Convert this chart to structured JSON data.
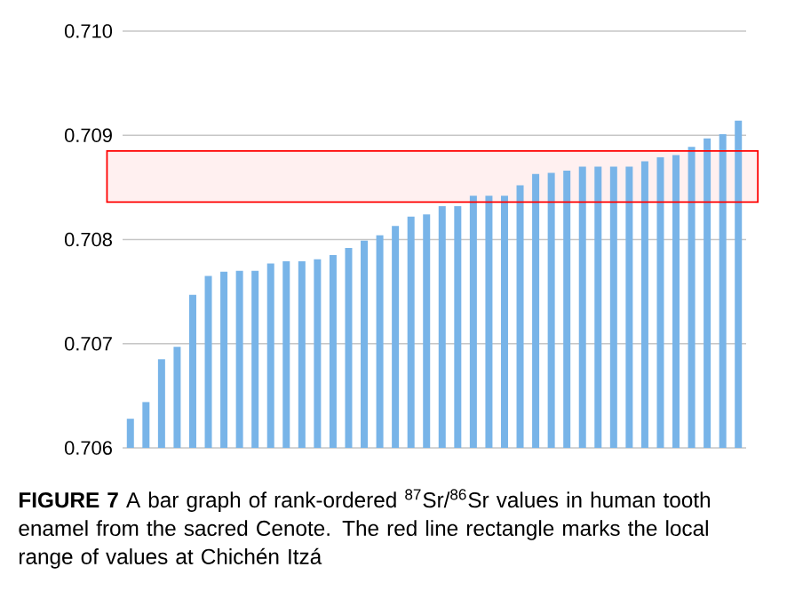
{
  "chart_data": {
    "type": "bar",
    "categories": [
      null,
      null,
      null,
      null,
      null,
      null,
      null,
      null,
      null,
      null,
      null,
      null,
      null,
      null,
      null,
      null,
      null,
      null,
      null,
      null,
      null,
      null,
      null,
      null,
      null,
      null,
      null,
      null,
      null,
      null,
      null,
      null,
      null,
      null,
      null,
      null,
      null,
      null,
      null,
      null
    ],
    "values": [
      0.70628,
      0.70644,
      0.70685,
      0.70697,
      0.70747,
      0.70765,
      0.70769,
      0.7077,
      0.7077,
      0.70777,
      0.70779,
      0.70779,
      0.70781,
      0.70785,
      0.70792,
      0.70799,
      0.70804,
      0.70813,
      0.70822,
      0.70824,
      0.70832,
      0.70832,
      0.70842,
      0.70842,
      0.70842,
      0.70852,
      0.70863,
      0.70864,
      0.70866,
      0.7087,
      0.7087,
      0.7087,
      0.7087,
      0.70875,
      0.70879,
      0.70881,
      0.70889,
      0.70897,
      0.70901,
      0.70914
    ],
    "color": "#78b4e8",
    "ylim": [
      0.706,
      0.71
    ],
    "yticks": [
      0.706,
      0.707,
      0.708,
      0.709,
      {
        "value": 0.71,
        "label": "0.710"
      }
    ],
    "grid": "y",
    "tick_labels": "y",
    "bands": [
      {
        "axis": "y",
        "from": 0.70836,
        "to": 0.70885
      }
    ],
    "annotations": [
      "**FIGURE 7**    A bar graph of rank-ordered $^{87}$Sr/$^{86}$Sr values in human tooth enamel from the sacred Cenote. The red line rectangle marks the local range of values at Chichén Itzá"
    ]
  }
}
